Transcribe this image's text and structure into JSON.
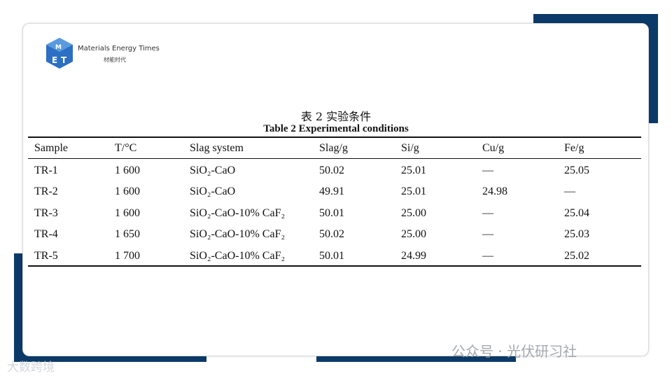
{
  "logo": {
    "name": "Materials Energy Times",
    "name_cn": "材能时代"
  },
  "table": {
    "caption_cn": "表 2  实验条件",
    "caption_en": "Table 2 Experimental conditions",
    "header": [
      "Sample",
      "T/°C",
      "Slag system",
      "Slag/g",
      "Si/g",
      "Cu/g",
      "Fe/g"
    ],
    "rows": [
      [
        "TR-1",
        "1 600",
        "SiO₂-CaO",
        "50.02",
        "25.01",
        "—",
        "25.05"
      ],
      [
        "TR-2",
        "1 600",
        "SiO₂-CaO",
        "49.91",
        "25.01",
        "24.98",
        "—"
      ],
      [
        "TR-3",
        "1 600",
        "SiO₂-CaO-10% CaF₂",
        "50.01",
        "25.00",
        "—",
        "25.04"
      ],
      [
        "TR-4",
        "1 650",
        "SiO₂-CaO-10% CaF₂",
        "50.02",
        "25.00",
        "—",
        "25.03"
      ],
      [
        "TR-5",
        "1 700",
        "SiO₂-CaO-10% CaF₂",
        "50.01",
        "24.99",
        "—",
        "25.02"
      ]
    ]
  },
  "watermarks": [
    "公众号 · 光伏研习社",
    "大数跨境"
  ]
}
